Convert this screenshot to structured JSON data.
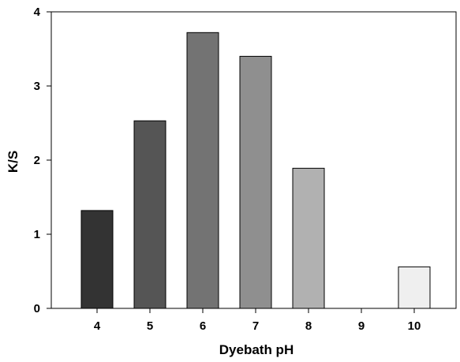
{
  "chart_data": {
    "type": "bar",
    "title": "",
    "xlabel": "Dyebath pH",
    "ylabel": "K/S",
    "categories": [
      "4",
      "5",
      "6",
      "7",
      "8",
      "9",
      "10"
    ],
    "values": [
      1.32,
      2.53,
      3.72,
      3.4,
      1.89,
      0,
      0.56
    ],
    "bar_colors": [
      "#333333",
      "#555555",
      "#737373",
      "#8f8f8f",
      "#b1b1b1",
      "#d6d6d6",
      "#efefef"
    ],
    "ylim": [
      0,
      4
    ],
    "yticks": [
      "0",
      "1",
      "2",
      "3",
      "4"
    ],
    "grid": false,
    "legend": "none"
  }
}
